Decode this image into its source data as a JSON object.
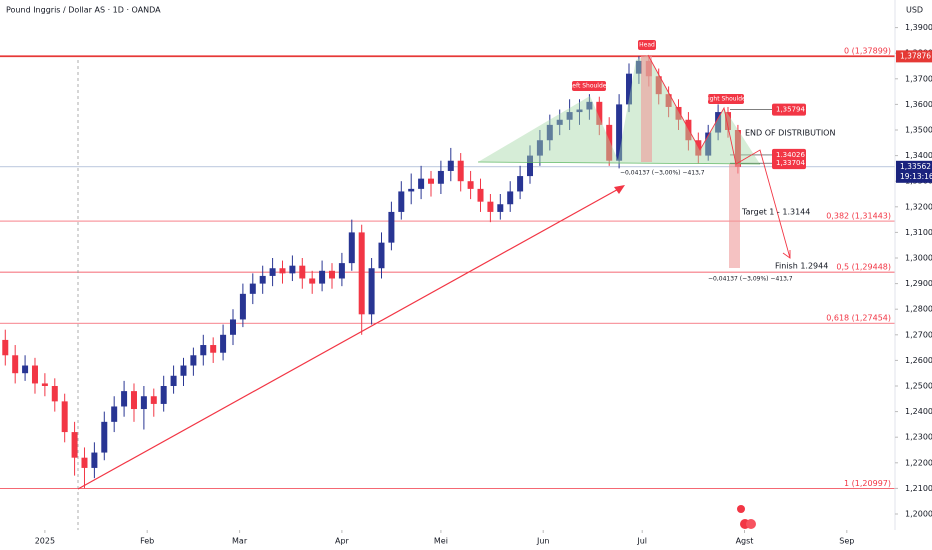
{
  "chart_data": {
    "type": "candlestick",
    "title": "Pound Inggris / Dollar AS · 1D · OANDA",
    "currency": "USD",
    "up_color": "#283593",
    "down_color": "#f23645",
    "x": [
      -12,
      -9,
      -6,
      -3,
      0,
      3,
      6,
      9,
      12,
      15,
      18,
      21,
      24,
      27,
      30,
      33,
      36,
      39,
      42,
      45,
      48,
      51,
      54,
      57,
      60,
      63,
      66,
      69,
      72,
      75,
      78,
      81,
      84,
      87,
      90,
      93,
      96,
      99,
      102,
      105,
      108,
      111,
      114,
      117,
      120,
      123,
      126,
      129,
      132,
      135,
      138,
      141,
      144,
      147,
      150,
      153,
      156,
      159,
      162,
      165,
      168,
      171,
      174,
      177,
      180,
      183,
      186,
      189,
      192,
      195,
      198,
      201,
      204,
      207,
      210
    ],
    "open": [
      1.268,
      1.262,
      1.255,
      1.258,
      1.251,
      1.25,
      1.244,
      1.232,
      1.222,
      1.218,
      1.224,
      1.236,
      1.242,
      1.248,
      1.241,
      1.246,
      1.243,
      1.25,
      1.254,
      1.258,
      1.262,
      1.266,
      1.263,
      1.27,
      1.276,
      1.286,
      1.29,
      1.293,
      1.296,
      1.294,
      1.297,
      1.292,
      1.29,
      1.295,
      1.292,
      1.298,
      1.31,
      1.278,
      1.296,
      1.306,
      1.318,
      1.326,
      1.327,
      1.331,
      1.329,
      1.334,
      1.338,
      1.33,
      1.327,
      1.322,
      1.318,
      1.321,
      1.326,
      1.332,
      1.34,
      1.346,
      1.352,
      1.354,
      1.357,
      1.358,
      1.361,
      1.352,
      1.338,
      1.36,
      1.372,
      1.377,
      1.371,
      1.364,
      1.359,
      1.354,
      1.346,
      1.34,
      1.349,
      1.357,
      1.35
    ],
    "high": [
      1.272,
      1.266,
      1.262,
      1.261,
      1.255,
      1.253,
      1.247,
      1.236,
      1.226,
      1.228,
      1.24,
      1.246,
      1.252,
      1.251,
      1.25,
      1.249,
      1.254,
      1.258,
      1.261,
      1.265,
      1.27,
      1.269,
      1.274,
      1.28,
      1.29,
      1.294,
      1.297,
      1.3,
      1.299,
      1.301,
      1.3,
      1.295,
      1.299,
      1.298,
      1.302,
      1.315,
      1.313,
      1.3,
      1.31,
      1.322,
      1.33,
      1.333,
      1.336,
      1.334,
      1.338,
      1.343,
      1.341,
      1.334,
      1.331,
      1.325,
      1.325,
      1.33,
      1.336,
      1.344,
      1.35,
      1.356,
      1.358,
      1.362,
      1.362,
      1.364,
      1.363,
      1.355,
      1.364,
      1.376,
      1.3788,
      1.379,
      1.374,
      1.367,
      1.362,
      1.357,
      1.349,
      1.352,
      1.36,
      1.359,
      1.352
    ],
    "low": [
      1.258,
      1.251,
      1.252,
      1.247,
      1.246,
      1.24,
      1.228,
      1.215,
      1.21,
      1.214,
      1.221,
      1.232,
      1.238,
      1.236,
      1.233,
      1.238,
      1.24,
      1.247,
      1.25,
      1.254,
      1.258,
      1.259,
      1.26,
      1.266,
      1.273,
      1.282,
      1.286,
      1.289,
      1.29,
      1.291,
      1.288,
      1.286,
      1.287,
      1.288,
      1.289,
      1.295,
      1.27,
      1.274,
      1.292,
      1.303,
      1.315,
      1.321,
      1.323,
      1.324,
      1.325,
      1.33,
      1.326,
      1.323,
      1.318,
      1.314,
      1.315,
      1.318,
      1.323,
      1.329,
      1.336,
      1.342,
      1.348,
      1.35,
      1.352,
      1.354,
      1.348,
      1.336,
      1.335,
      1.357,
      1.368,
      1.367,
      1.36,
      1.355,
      1.35,
      1.342,
      1.337,
      1.338,
      1.346,
      1.347,
      1.333
    ],
    "close": [
      1.262,
      1.255,
      1.258,
      1.251,
      1.25,
      1.244,
      1.232,
      1.222,
      1.218,
      1.224,
      1.236,
      1.242,
      1.248,
      1.241,
      1.246,
      1.243,
      1.25,
      1.254,
      1.258,
      1.262,
      1.266,
      1.263,
      1.27,
      1.276,
      1.286,
      1.29,
      1.293,
      1.296,
      1.294,
      1.297,
      1.292,
      1.29,
      1.295,
      1.292,
      1.298,
      1.31,
      1.278,
      1.296,
      1.306,
      1.318,
      1.326,
      1.327,
      1.331,
      1.329,
      1.334,
      1.338,
      1.33,
      1.327,
      1.322,
      1.318,
      1.321,
      1.326,
      1.332,
      1.34,
      1.346,
      1.352,
      1.354,
      1.357,
      1.358,
      1.361,
      1.352,
      1.338,
      1.36,
      1.372,
      1.377,
      1.371,
      1.364,
      1.359,
      1.354,
      1.346,
      1.34,
      1.349,
      1.357,
      1.35,
      1.3356
    ],
    "xlim": [
      -13.6,
      257.6
    ],
    "ylim": [
      1.19375,
      1.40078
    ],
    "xticks": [
      {
        "value": 0,
        "label": "2025"
      },
      {
        "value": 31,
        "label": "Feb"
      },
      {
        "value": 59,
        "label": "Mar"
      },
      {
        "value": 90,
        "label": "Apr"
      },
      {
        "value": 120,
        "label": "Mei"
      },
      {
        "value": 151,
        "label": "Jun"
      },
      {
        "value": 181,
        "label": "Jul"
      },
      {
        "value": 212,
        "label": "Agst"
      },
      {
        "value": 243,
        "label": "Sep"
      }
    ],
    "yticks": [
      {
        "value": 1.2,
        "label": "1,20000"
      },
      {
        "value": 1.21,
        "label": "1,21000"
      },
      {
        "value": 1.22,
        "label": "1,22000"
      },
      {
        "value": 1.23,
        "label": "1,23000"
      },
      {
        "value": 1.24,
        "label": "1,24000"
      },
      {
        "value": 1.25,
        "label": "1,25000"
      },
      {
        "value": 1.26,
        "label": "1,26000"
      },
      {
        "value": 1.27,
        "label": "1,27000"
      },
      {
        "value": 1.28,
        "label": "1,28000"
      },
      {
        "value": 1.29,
        "label": "1,29000"
      },
      {
        "value": 1.3,
        "label": "1,30000"
      },
      {
        "value": 1.31,
        "label": "1,31000"
      },
      {
        "value": 1.32,
        "label": "1,32000"
      },
      {
        "value": 1.33,
        "label": "1,33000"
      },
      {
        "value": 1.34,
        "label": "1,34000"
      },
      {
        "value": 1.35,
        "label": "1,35000"
      },
      {
        "value": 1.36,
        "label": "1,36000"
      },
      {
        "value": 1.37,
        "label": "1,37000"
      },
      {
        "value": 1.38,
        "label": "1,38000"
      },
      {
        "value": 1.39,
        "label": "1,39000"
      }
    ],
    "fib_levels": [
      {
        "value": 1.37899,
        "label": "0 (1,37899)"
      },
      {
        "value": 1.31443,
        "label": "0,382 (1,31443)"
      },
      {
        "value": 1.29448,
        "label": "0,5 (1,29448)"
      },
      {
        "value": 1.27454,
        "label": "0,618 (1,27454)"
      },
      {
        "value": 1.20997,
        "label": "1 (1,20997)"
      }
    ],
    "resistance": {
      "value": 1.37876,
      "label": "1,37876"
    },
    "last_price": {
      "value": 1.33562,
      "label": "1,33562"
    },
    "countdown": "19:13:16",
    "price_boxes": [
      {
        "value": 1.35794,
        "label": "1,35794"
      },
      {
        "value": 1.34026,
        "label": "1,34026"
      },
      {
        "value": 1.33704,
        "label": "1,33704"
      }
    ],
    "annotations": {
      "head": "Head",
      "left_shoulder": "Left Shoulder",
      "right_shoulder": "Right Shoulder",
      "distribution": "END OF DISTRIBUTION",
      "target": "Target 1 - 1.3144",
      "finish": "Finish 1.2944",
      "measure_1": "−0,04137 (−3,00%) −413,7",
      "measure_2": "−0,04137 (−3,09%) −413,7"
    }
  }
}
